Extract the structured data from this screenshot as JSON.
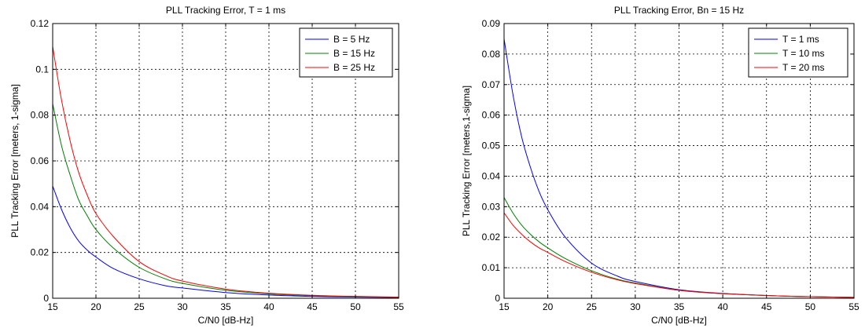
{
  "chart_data": [
    {
      "type": "line",
      "title": "PLL Tracking Error, T = 1 ms",
      "xlabel": "C/N0 [dB-Hz]",
      "ylabel": "PLL Tracking Error [meters, 1-sigma]",
      "xlim": [
        15,
        55
      ],
      "ylim": [
        0,
        0.12
      ],
      "xticks": [
        15,
        20,
        25,
        30,
        35,
        40,
        45,
        50,
        55
      ],
      "yticks": [
        0,
        0.02,
        0.04,
        0.06,
        0.08,
        0.1,
        0.12
      ],
      "xtick_labels": [
        "15",
        "20",
        "25",
        "30",
        "35",
        "40",
        "45",
        "50",
        "55"
      ],
      "ytick_labels": [
        "0",
        "0.02",
        "0.04",
        "0.06",
        "0.08",
        "0.1",
        "0.12"
      ],
      "grid": true,
      "legend_position": "top-right",
      "x": [
        15,
        16,
        17,
        18,
        19,
        20,
        22,
        25,
        28,
        30,
        35,
        40,
        45,
        50,
        55
      ],
      "series": [
        {
          "name": "B = 5 Hz",
          "color": "#0000ff",
          "values": [
            0.049,
            0.039,
            0.031,
            0.025,
            0.021,
            0.018,
            0.013,
            0.0085,
            0.0055,
            0.0045,
            0.0025,
            0.0014,
            0.0008,
            0.0005,
            0.0003
          ]
        },
        {
          "name": "B = 15 Hz",
          "color": "#008000",
          "values": [
            0.085,
            0.067,
            0.054,
            0.043,
            0.036,
            0.03,
            0.022,
            0.0135,
            0.0085,
            0.0065,
            0.0035,
            0.0019,
            0.0011,
            0.0007,
            0.0004
          ]
        },
        {
          "name": "B = 25 Hz",
          "color": "#ff0000",
          "values": [
            0.11,
            0.087,
            0.069,
            0.055,
            0.045,
            0.037,
            0.027,
            0.016,
            0.01,
            0.0075,
            0.004,
            0.0022,
            0.0013,
            0.0008,
            0.0005
          ]
        }
      ]
    },
    {
      "type": "line",
      "title": "PLL Tracking Error, Bn = 15 Hz",
      "xlabel": "C/N0 [dB-Hz]",
      "ylabel": "PLL Tracking Error [meters,1-sigma]",
      "xlim": [
        15,
        55
      ],
      "ylim": [
        0,
        0.09
      ],
      "xticks": [
        15,
        20,
        25,
        30,
        35,
        40,
        45,
        50,
        55
      ],
      "yticks": [
        0,
        0.01,
        0.02,
        0.03,
        0.04,
        0.05,
        0.06,
        0.07,
        0.08,
        0.09
      ],
      "xtick_labels": [
        "15",
        "20",
        "25",
        "30",
        "35",
        "40",
        "45",
        "50",
        "55"
      ],
      "ytick_labels": [
        "0",
        "0.01",
        "0.02",
        "0.03",
        "0.04",
        "0.05",
        "0.06",
        "0.07",
        "0.08",
        "0.09"
      ],
      "grid": true,
      "legend_position": "top-right",
      "x": [
        15,
        16,
        17,
        18,
        19,
        20,
        22,
        25,
        28,
        30,
        35,
        40,
        45,
        50,
        55
      ],
      "series": [
        {
          "name": "T = 1 ms",
          "color": "#0000ff",
          "values": [
            0.085,
            0.067,
            0.053,
            0.043,
            0.035,
            0.029,
            0.02,
            0.0115,
            0.0072,
            0.0055,
            0.0028,
            0.0016,
            0.0009,
            0.0005,
            0.0003
          ]
        },
        {
          "name": "T = 10 ms",
          "color": "#008000",
          "values": [
            0.033,
            0.028,
            0.024,
            0.021,
            0.0185,
            0.0165,
            0.013,
            0.009,
            0.0062,
            0.005,
            0.0026,
            0.0015,
            0.0009,
            0.0005,
            0.0003
          ]
        },
        {
          "name": "T = 20 ms",
          "color": "#ff0000",
          "values": [
            0.028,
            0.024,
            0.021,
            0.0185,
            0.0165,
            0.015,
            0.012,
            0.0085,
            0.006,
            0.0048,
            0.0026,
            0.0015,
            0.0009,
            0.0005,
            0.0003
          ]
        }
      ]
    }
  ]
}
